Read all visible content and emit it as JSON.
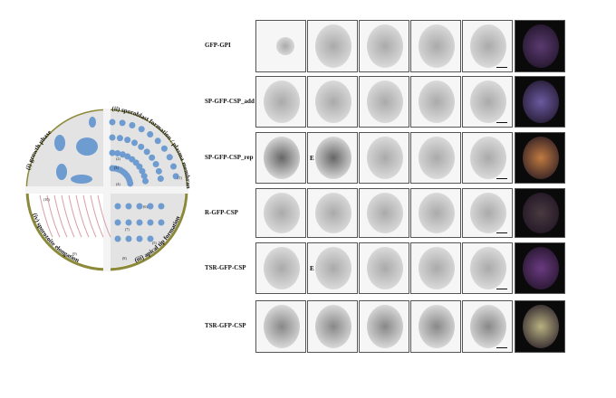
{
  "diagram": {
    "stages": [
      "(i) growth phase",
      "(ii) sporoblast formation / plasma membrane invagination",
      "(iii) apical tip formation",
      "(iv) sporozoite elongation"
    ],
    "markers": [
      "(1)",
      "(2)",
      "(3)",
      "(4)",
      "(5)",
      "(6)",
      "(7)",
      "(8)",
      "(9)",
      "(10)"
    ],
    "colors": {
      "nucleus": "#6e9bd0",
      "ring": "#8c8a3a",
      "cytoplasm": "#e3e3e3",
      "membrane": "#d8a0a8"
    }
  },
  "rows": [
    {
      "label": "GFP-GPI",
      "merge": "#5a3a70",
      "annot": ""
    },
    {
      "label": "SP-GFP-CSP_add",
      "merge": "#6a5aa0",
      "annot": ""
    },
    {
      "label": "SP-GFP-CSP_rep",
      "merge": "#c07a40",
      "annot": "E"
    },
    {
      "label": "R-GFP-CSP",
      "merge": "#4a3a40",
      "annot": ""
    },
    {
      "label": "TSR-GFP-CSP",
      "merge": "#6a3a80",
      "annot": "E"
    },
    {
      "label": "TSR-GFP-CSP",
      "merge": "#b8b080",
      "annot": ""
    }
  ]
}
